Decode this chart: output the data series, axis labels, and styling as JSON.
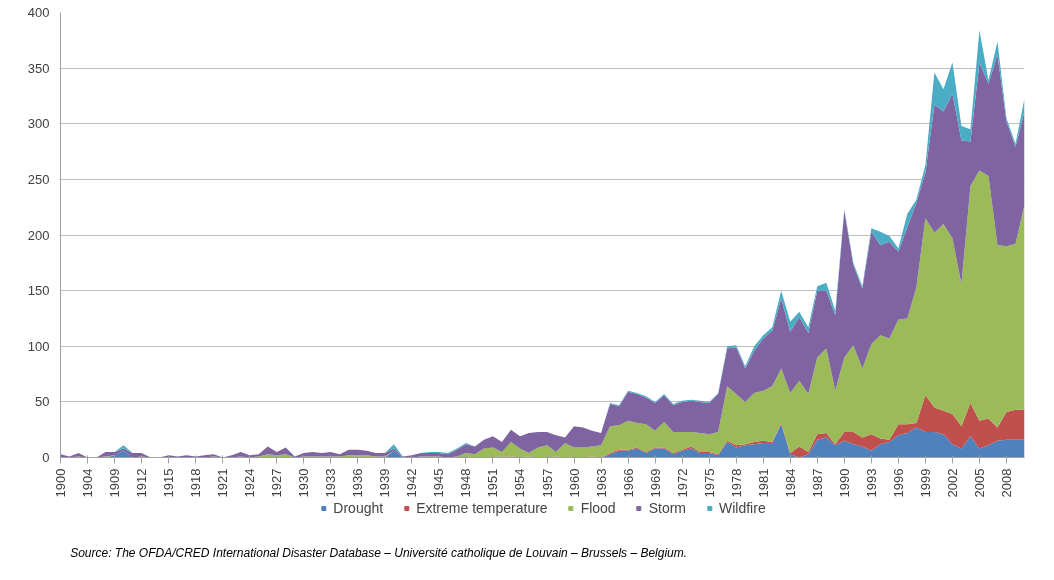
{
  "chart_data": {
    "type": "area",
    "stacked": true,
    "categories": [
      "1900",
      null,
      null,
      "1904",
      null,
      null,
      "1909",
      null,
      null,
      "1912",
      null,
      null,
      "1915",
      null,
      null,
      "1918",
      null,
      null,
      "1921",
      null,
      null,
      "1924",
      null,
      null,
      "1927",
      null,
      null,
      "1930",
      null,
      null,
      "1933",
      null,
      null,
      "1936",
      null,
      null,
      "1939",
      null,
      null,
      "1942",
      null,
      null,
      "1945",
      null,
      null,
      "1948",
      null,
      null,
      "1951",
      null,
      null,
      "1954",
      null,
      null,
      "1957",
      null,
      null,
      "1960",
      null,
      null,
      "1963",
      null,
      null,
      "1966",
      null,
      null,
      "1969",
      null,
      null,
      "1972",
      null,
      null,
      "1975",
      null,
      null,
      "1978",
      null,
      null,
      "1981",
      null,
      null,
      "1984",
      null,
      null,
      "1987",
      null,
      null,
      "1990",
      null,
      null,
      "1993",
      null,
      null,
      "1996",
      null,
      null,
      "1999",
      null,
      null,
      "2002",
      null,
      null,
      "2005",
      null,
      null,
      "2008",
      null,
      null
    ],
    "series": [
      {
        "name": "Drought",
        "color": "#4f81bd",
        "values": [
          0,
          0,
          0,
          0,
          0,
          0,
          2,
          6,
          0,
          0,
          0,
          0,
          0,
          0,
          0,
          0,
          0,
          0,
          0,
          0,
          0,
          0,
          0,
          0,
          0,
          0,
          0,
          0,
          0,
          0,
          0,
          0,
          0,
          0,
          0,
          0,
          0,
          6,
          0,
          0,
          0,
          0,
          0,
          0,
          0,
          0,
          0,
          0,
          0,
          0,
          0,
          0,
          0,
          0,
          0,
          0,
          0,
          0,
          0,
          0,
          0,
          3,
          6,
          6,
          8,
          4,
          8,
          8,
          3,
          6,
          8,
          4,
          4,
          2,
          14,
          9,
          11,
          12,
          13,
          13,
          30,
          3,
          0,
          3,
          16,
          18,
          11,
          15,
          12,
          10,
          6,
          12,
          14,
          20,
          22,
          27,
          23,
          23,
          21,
          12,
          8,
          19,
          8,
          11,
          15,
          16,
          16,
          16
        ]
      },
      {
        "name": "Extreme temperature",
        "color": "#c0504d",
        "values": [
          0,
          0,
          0,
          0,
          0,
          0,
          0,
          0,
          0,
          0,
          0,
          0,
          0,
          0,
          0,
          0,
          0,
          0,
          0,
          0,
          0,
          0,
          0,
          0,
          0,
          0,
          0,
          0,
          0,
          0,
          0,
          0,
          0,
          1,
          0,
          0,
          0,
          0,
          0,
          0,
          0,
          0,
          0,
          0,
          0,
          0,
          0,
          0,
          0,
          1,
          1,
          0,
          1,
          0,
          0,
          1,
          0,
          0,
          0,
          1,
          0,
          1,
          1,
          1,
          1,
          1,
          1,
          1,
          1,
          1,
          2,
          1,
          1,
          1,
          1,
          2,
          1,
          2,
          2,
          1,
          1,
          1,
          10,
          2,
          5,
          4,
          1,
          8,
          11,
          8,
          15,
          5,
          2,
          10,
          8,
          4,
          33,
          22,
          21,
          27,
          20,
          30,
          25,
          24,
          12,
          25,
          27,
          27
        ]
      },
      {
        "name": "Flood",
        "color": "#9bbb59",
        "values": [
          0,
          0,
          1,
          0,
          0,
          1,
          0,
          0,
          0,
          1,
          0,
          0,
          0,
          0,
          0,
          0,
          0,
          1,
          0,
          0,
          1,
          0,
          1,
          3,
          2,
          3,
          0,
          1,
          1,
          1,
          1,
          1,
          2,
          1,
          2,
          1,
          1,
          0,
          0,
          0,
          1,
          1,
          1,
          0,
          1,
          4,
          3,
          8,
          9,
          4,
          13,
          8,
          3,
          9,
          11,
          4,
          13,
          9,
          9,
          9,
          11,
          24,
          22,
          26,
          22,
          25,
          15,
          23,
          19,
          16,
          13,
          17,
          16,
          20,
          49,
          46,
          38,
          44,
          45,
          50,
          49,
          54,
          59,
          52,
          69,
          76,
          48,
          67,
          78,
          62,
          81,
          93,
          91,
          94,
          95,
          122,
          159,
          157,
          168,
          158,
          128,
          195,
          225,
          218,
          164,
          149,
          149,
          184
        ]
      },
      {
        "name": "Storm",
        "color": "#8064a2",
        "values": [
          3,
          1,
          3,
          0,
          0,
          4,
          3,
          2,
          4,
          3,
          0,
          0,
          2,
          1,
          2,
          1,
          2,
          2,
          0,
          2,
          4,
          2,
          2,
          7,
          3,
          6,
          1,
          3,
          4,
          3,
          4,
          2,
          5,
          5,
          4,
          3,
          3,
          2,
          1,
          2,
          3,
          3,
          3,
          3,
          6,
          8,
          7,
          8,
          10,
          9,
          11,
          11,
          18,
          14,
          12,
          15,
          5,
          19,
          18,
          14,
          11,
          20,
          17,
          26,
          26,
          24,
          25,
          24,
          24,
          27,
          28,
          28,
          28,
          34,
          34,
          42,
          30,
          38,
          47,
          50,
          63,
          55,
          57,
          55,
          60,
          52,
          68,
          132,
          72,
          72,
          101,
          81,
          87,
          61,
          82,
          76,
          41,
          115,
          101,
          130,
          129,
          40,
          97,
          83,
          171,
          112,
          87,
          84
        ]
      },
      {
        "name": "Wildfire",
        "color": "#4bacc6",
        "values": [
          0,
          0,
          0,
          0,
          0,
          0,
          0,
          3,
          0,
          0,
          0,
          0,
          0,
          0,
          0,
          0,
          0,
          0,
          0,
          0,
          0,
          0,
          0,
          0,
          0,
          0,
          0,
          0,
          0,
          0,
          0,
          0,
          0,
          0,
          0,
          0,
          0,
          4,
          0,
          0,
          0,
          1,
          1,
          1,
          1,
          1,
          0,
          0,
          0,
          0,
          0,
          0,
          0,
          0,
          0,
          0,
          0,
          0,
          0,
          0,
          0,
          1,
          1,
          1,
          1,
          1,
          1,
          1,
          1,
          1,
          1,
          1,
          1,
          1,
          2,
          2,
          2,
          4,
          3,
          3,
          7,
          9,
          5,
          5,
          4,
          7,
          4,
          1,
          2,
          2,
          3,
          12,
          5,
          3,
          12,
          3,
          7,
          29,
          20,
          28,
          13,
          11,
          29,
          3,
          12,
          3,
          3,
          12
        ]
      }
    ],
    "ylim": [
      0,
      400
    ],
    "yticks": [
      0,
      50,
      100,
      150,
      200,
      250,
      300,
      350,
      400
    ],
    "grid": "y",
    "legend": "bottom",
    "annotations": [
      "Source:  The OFDA/CRED International Disaster Database – Université catholique de Louvain – Brussels – Belgium."
    ]
  }
}
